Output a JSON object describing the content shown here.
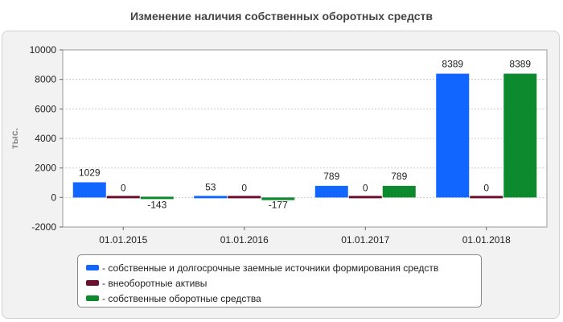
{
  "chart_data": {
    "type": "bar",
    "title": "Изменение наличия собственных оборотных средств",
    "ylabel": "тыс.",
    "categories": [
      "01.01.2015",
      "01.01.2016",
      "01.01.2017",
      "01.01.2018"
    ],
    "series": [
      {
        "name": "собственные и долгосрочные заемные источники формирования средств",
        "color": "#1166ff",
        "values": [
          1029,
          53,
          789,
          8389
        ]
      },
      {
        "name": "внеоборотные активы",
        "color": "#6a0f2e",
        "values": [
          0,
          0,
          0,
          0
        ]
      },
      {
        "name": "собственные оборотные средства",
        "color": "#0e8a2e",
        "values": [
          -143,
          -177,
          789,
          8389
        ]
      }
    ],
    "ylim": [
      -2000,
      10000
    ],
    "yticks": [
      -2000,
      0,
      2000,
      4000,
      6000,
      8000,
      10000
    ],
    "grid": true,
    "legend_position": "bottom"
  }
}
